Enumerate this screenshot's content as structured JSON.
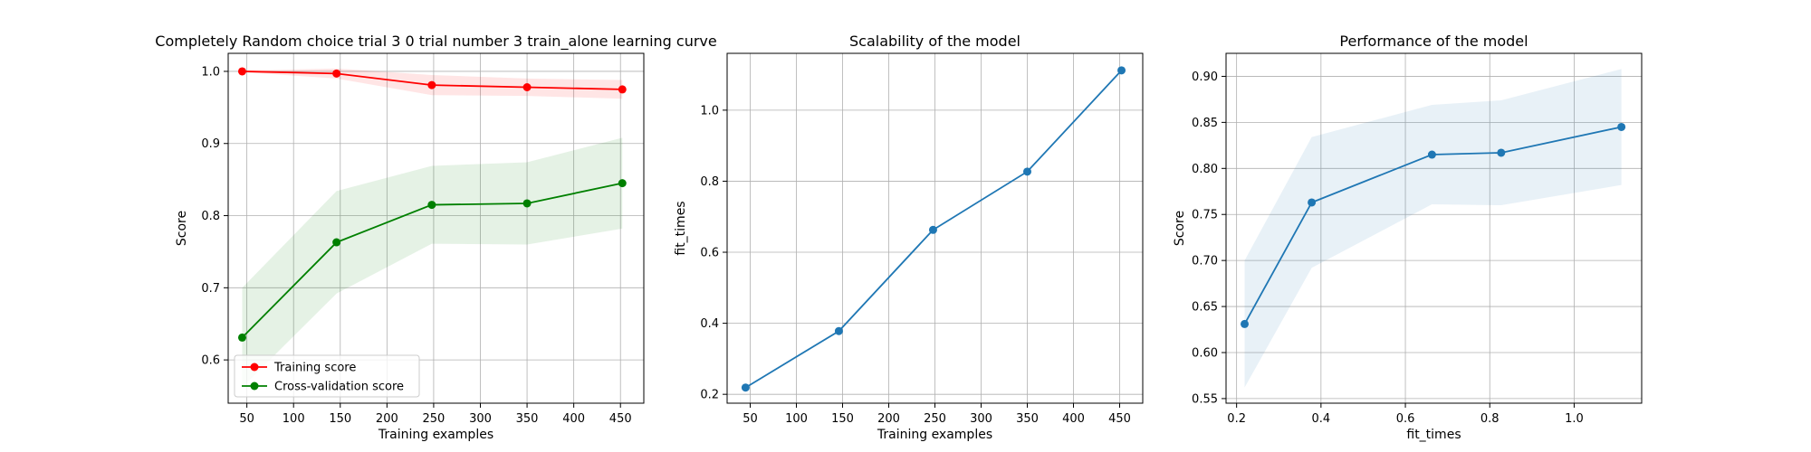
{
  "chart_data": [
    {
      "type": "line",
      "title": "Completely Random choice trial 3 0 trial number 3 train_alone learning curve",
      "xlabel": "Training examples",
      "ylabel": "Score",
      "xlim": [
        30,
        475
      ],
      "ylim": [
        0.54,
        1.025
      ],
      "xticks": [
        50,
        100,
        150,
        200,
        250,
        300,
        350,
        400,
        450
      ],
      "yticks": [
        0.6,
        0.7,
        0.8,
        0.9,
        1.0
      ],
      "grid": true,
      "legend_position": "lower-left",
      "x": [
        45,
        146,
        248,
        350,
        452
      ],
      "series": [
        {
          "name": "Training score",
          "color": "#ff0000",
          "values": [
            1.0,
            0.997,
            0.981,
            0.978,
            0.975
          ],
          "band_low": [
            0.999,
            0.99,
            0.967,
            0.966,
            0.962
          ],
          "band_high": [
            1.001,
            1.004,
            0.995,
            0.99,
            0.988
          ]
        },
        {
          "name": "Cross-validation score",
          "color": "#008000",
          "values": [
            0.631,
            0.763,
            0.815,
            0.817,
            0.845
          ],
          "band_low": [
            0.562,
            0.692,
            0.761,
            0.76,
            0.782
          ],
          "band_high": [
            0.7,
            0.834,
            0.869,
            0.874,
            0.908
          ]
        }
      ]
    },
    {
      "type": "line",
      "title": "Scalability of the model",
      "xlabel": "Training examples",
      "ylabel": "fit_times",
      "xlim": [
        25,
        475
      ],
      "ylim": [
        0.175,
        1.16
      ],
      "xticks": [
        50,
        100,
        150,
        200,
        250,
        300,
        350,
        400,
        450
      ],
      "yticks": [
        0.2,
        0.4,
        0.6,
        0.8,
        1.0
      ],
      "grid": true,
      "x": [
        45,
        146,
        248,
        350,
        452
      ],
      "series": [
        {
          "color": "#1f77b4",
          "values": [
            0.219,
            0.378,
            0.663,
            0.827,
            1.112
          ]
        }
      ]
    },
    {
      "type": "line",
      "title": "Performance of the model",
      "xlabel": "fit_times",
      "ylabel": "Score",
      "xlim": [
        0.175,
        1.16
      ],
      "ylim": [
        0.545,
        0.925
      ],
      "xticks": [
        0.2,
        0.4,
        0.6,
        0.8,
        1.0
      ],
      "yticks": [
        0.55,
        0.6,
        0.65,
        0.7,
        0.75,
        0.8,
        0.85,
        0.9
      ],
      "grid": true,
      "x": [
        0.219,
        0.378,
        0.663,
        0.827,
        1.112
      ],
      "series": [
        {
          "color": "#1f77b4",
          "values": [
            0.631,
            0.763,
            0.815,
            0.817,
            0.845
          ],
          "band_low": [
            0.562,
            0.692,
            0.761,
            0.76,
            0.782
          ],
          "band_high": [
            0.7,
            0.834,
            0.869,
            0.874,
            0.908
          ]
        }
      ]
    }
  ]
}
